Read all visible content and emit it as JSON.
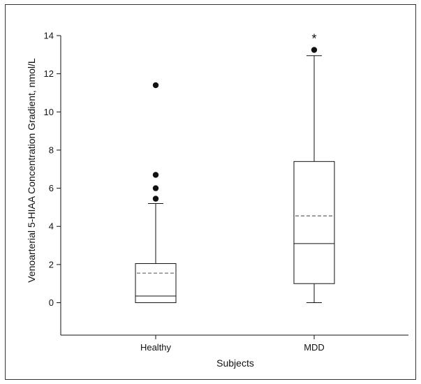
{
  "chart_data": {
    "type": "boxplot",
    "title": "",
    "xlabel": "Subjects",
    "ylabel": "Venoarterial 5-HIAA Concentration Gradient, nmol/L",
    "ylim": [
      -1.7,
      14
    ],
    "yticks": [
      0,
      2,
      4,
      6,
      8,
      10,
      12,
      14
    ],
    "ytick_labels": [
      "0",
      "2",
      "4",
      "6",
      "8",
      "10",
      "12",
      "14"
    ],
    "categories": [
      "Healthy",
      "MDD"
    ],
    "boxes": [
      {
        "category": "Healthy",
        "whisker_low": 0.0,
        "q1": 0.0,
        "median": 0.35,
        "mean": 1.55,
        "q3": 2.05,
        "whisker_high": 5.2,
        "outliers": [
          5.45,
          6.0,
          6.7,
          11.4
        ]
      },
      {
        "category": "MDD",
        "whisker_low": 0.0,
        "q1": 1.0,
        "median": 3.1,
        "mean": 4.55,
        "q3": 7.4,
        "whisker_high": 12.95,
        "outliers": [
          13.25
        ]
      }
    ],
    "annotations": [
      {
        "category": "MDD",
        "text": "*",
        "y": 13.9
      }
    ],
    "median_style": "solid",
    "mean_style": "dashed",
    "grid": false,
    "legend": "none"
  }
}
